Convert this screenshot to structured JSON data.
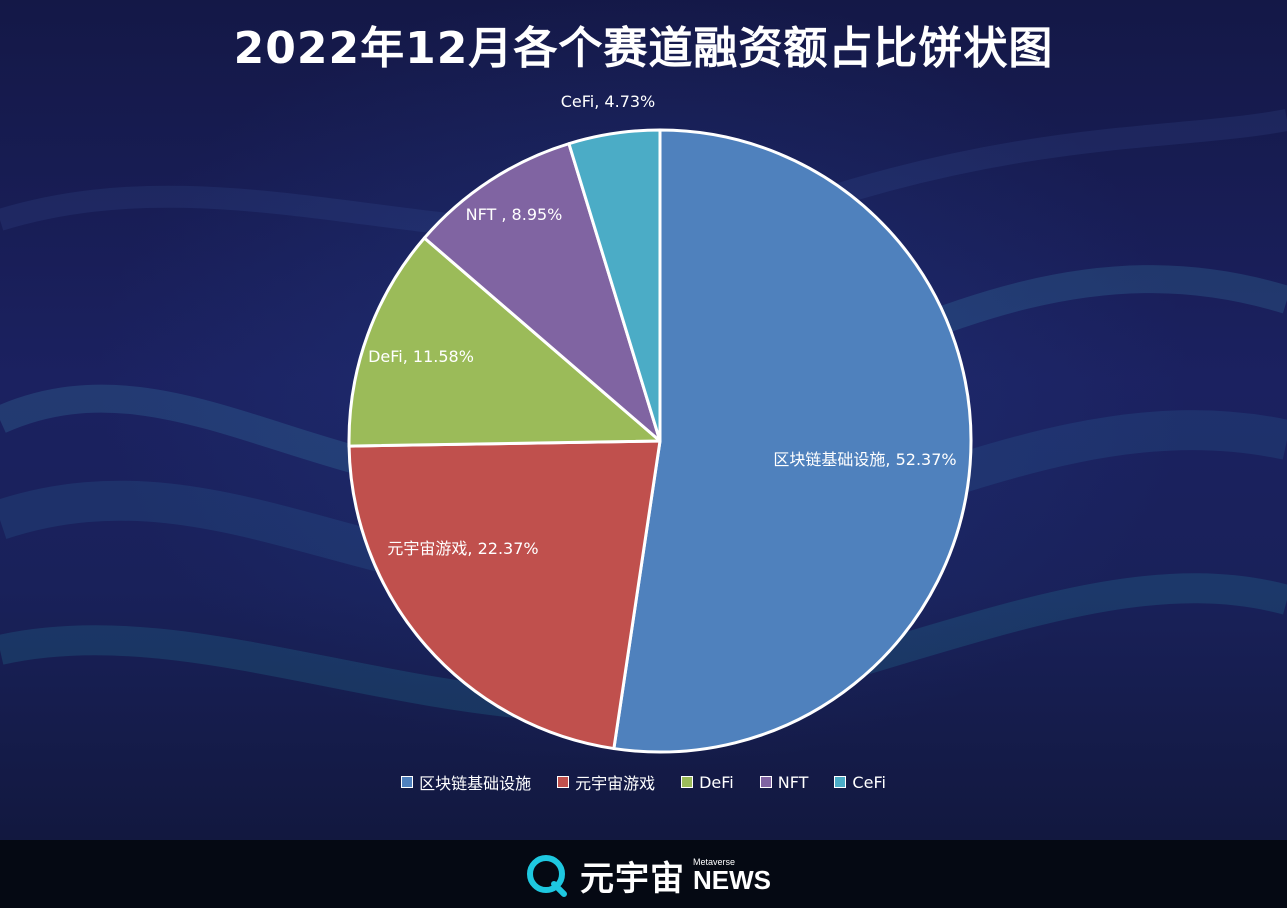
{
  "header": {
    "title": "2022年12月各个赛道融资额占比饼状图"
  },
  "chart_data": {
    "type": "pie",
    "title": "2022年12月各个赛道融资额占比饼状图",
    "slices": [
      {
        "name": "区块链基础设施",
        "value": 52.37,
        "label": "区块链基础设施, 52.37%",
        "color": "#4f81bd"
      },
      {
        "name": "元宇宙游戏",
        "value": 22.37,
        "label": "元宇宙游戏, 22.37%",
        "color": "#c0504d"
      },
      {
        "name": "DeFi",
        "value": 11.58,
        "label": "DeFi, 11.58%",
        "color": "#9bbb59"
      },
      {
        "name": "NFT",
        "value": 8.95,
        "label": "NFT , 8.95%",
        "color": "#8064a2"
      },
      {
        "name": "CeFi",
        "value": 4.73,
        "label": "CeFi, 4.73%",
        "color": "#4bacc6"
      }
    ],
    "legend_position": "bottom",
    "start_angle": "12 o'clock",
    "direction": "clockwise"
  },
  "legend": {
    "items": [
      {
        "label": "区块链基础设施",
        "color": "#4f81bd"
      },
      {
        "label": "元宇宙游戏",
        "color": "#c0504d"
      },
      {
        "label": "DeFi",
        "color": "#9bbb59"
      },
      {
        "label": "NFT",
        "color": "#8064a2"
      },
      {
        "label": "CeFi",
        "color": "#4bacc6"
      }
    ]
  },
  "footer": {
    "logo_icon": "q-ring-icon",
    "brand_cn": "元宇宙",
    "brand_meta": "Metaverse",
    "brand_news": "NEWS",
    "accent": "#1ec8e0"
  }
}
